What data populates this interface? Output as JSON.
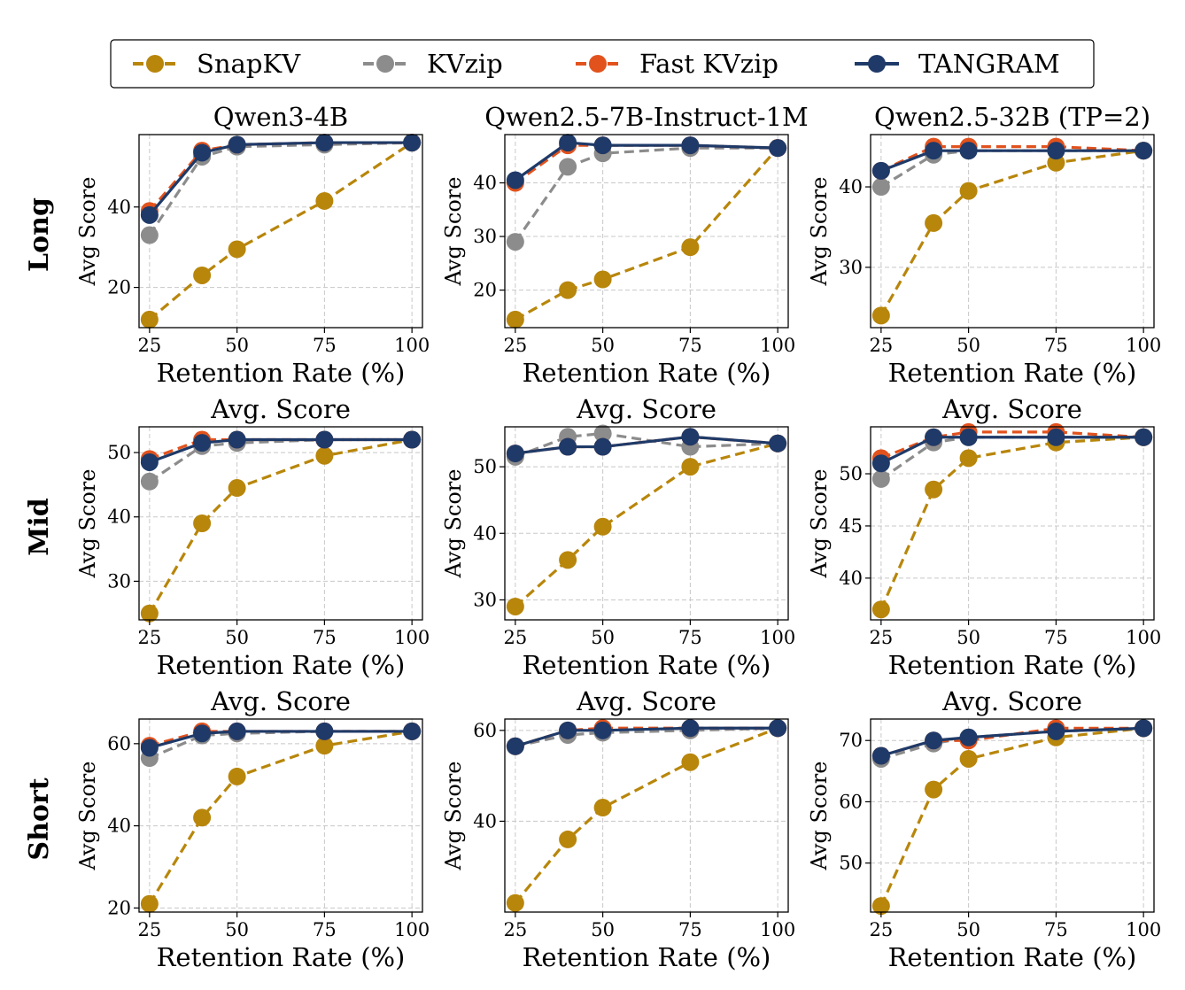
{
  "legend": {
    "items": [
      {
        "label": "SnapKV",
        "color": "#b8860b",
        "dash": true
      },
      {
        "label": "KVzip",
        "color": "#8c8c8c",
        "dash": true
      },
      {
        "label": "Fast KVzip",
        "color": "#e2521d",
        "dash": true
      },
      {
        "label": "TANGRAM",
        "color": "#1f3a68",
        "dash": false
      }
    ]
  },
  "row_labels": [
    "Long",
    "Mid",
    "Short"
  ],
  "column_titles": [
    "Qwen3-4B",
    "Qwen2.5-7B-Instruct-1M",
    "Qwen2.5-32B (TP=2)"
  ],
  "chart_data": [
    {
      "type": "line",
      "title": "Qwen3-4B",
      "row": "Long",
      "xlabel": "Retention Rate (%)",
      "ylabel": "Avg Score",
      "x": [
        25,
        40,
        50,
        75,
        100
      ],
      "xticks": [
        25,
        50,
        75,
        100
      ],
      "xlim": [
        22,
        103
      ],
      "yticks": [
        20,
        40
      ],
      "ylim": [
        10,
        58
      ],
      "grid": true,
      "series": [
        {
          "name": "SnapKV",
          "values": [
            12,
            23,
            29.5,
            41.5,
            56
          ]
        },
        {
          "name": "KVzip",
          "values": [
            33,
            52.5,
            55,
            55.5,
            56
          ]
        },
        {
          "name": "Fast KVzip",
          "values": [
            39,
            54,
            55.5,
            56,
            56
          ]
        },
        {
          "name": "TANGRAM",
          "values": [
            38,
            53.5,
            55.5,
            56,
            56
          ]
        }
      ]
    },
    {
      "type": "line",
      "title": "Qwen2.5-7B-Instruct-1M",
      "row": "Long",
      "xlabel": "Retention Rate (%)",
      "ylabel": "Avg Score",
      "x": [
        25,
        40,
        50,
        75,
        100
      ],
      "xticks": [
        25,
        50,
        75,
        100
      ],
      "xlim": [
        22,
        103
      ],
      "yticks": [
        20,
        30,
        40
      ],
      "ylim": [
        13,
        49
      ],
      "grid": true,
      "series": [
        {
          "name": "SnapKV",
          "values": [
            14.5,
            20,
            22,
            28,
            46.5
          ]
        },
        {
          "name": "KVzip",
          "values": [
            29,
            43,
            45.5,
            46.5,
            46.5
          ]
        },
        {
          "name": "Fast KVzip",
          "values": [
            40,
            47,
            47,
            47,
            46.5
          ]
        },
        {
          "name": "TANGRAM",
          "values": [
            40.5,
            47.5,
            47,
            47,
            46.5
          ]
        }
      ]
    },
    {
      "type": "line",
      "title": "Qwen2.5-32B (TP=2)",
      "row": "Long",
      "xlabel": "Retention Rate (%)",
      "ylabel": "Avg Score",
      "x": [
        25,
        40,
        50,
        75,
        100
      ],
      "xticks": [
        25,
        50,
        75,
        100
      ],
      "xlim": [
        22,
        103
      ],
      "yticks": [
        30,
        40
      ],
      "ylim": [
        22.5,
        46.5
      ],
      "grid": true,
      "series": [
        {
          "name": "SnapKV",
          "values": [
            24,
            35.5,
            39.5,
            43,
            44.5
          ]
        },
        {
          "name": "KVzip",
          "values": [
            40,
            44,
            44.5,
            44.5,
            44.5
          ]
        },
        {
          "name": "Fast KVzip",
          "values": [
            42,
            45,
            45,
            45,
            44.5
          ]
        },
        {
          "name": "TANGRAM",
          "values": [
            42,
            44.5,
            44.5,
            44.5,
            44.5
          ]
        }
      ]
    },
    {
      "type": "line",
      "title": "Avg. Score",
      "row": "Mid",
      "xlabel": "Retention Rate (%)",
      "ylabel": "Avg Score",
      "x": [
        25,
        40,
        50,
        75,
        100
      ],
      "xticks": [
        25,
        50,
        75,
        100
      ],
      "xlim": [
        22,
        103
      ],
      "yticks": [
        30,
        40,
        50
      ],
      "ylim": [
        24,
        54
      ],
      "grid": true,
      "series": [
        {
          "name": "SnapKV",
          "values": [
            25,
            39,
            44.5,
            49.5,
            52
          ]
        },
        {
          "name": "KVzip",
          "values": [
            45.5,
            51,
            51.5,
            52,
            52
          ]
        },
        {
          "name": "Fast KVzip",
          "values": [
            49,
            52,
            52,
            52,
            52
          ]
        },
        {
          "name": "TANGRAM",
          "values": [
            48.5,
            51.5,
            52,
            52,
            52
          ]
        }
      ]
    },
    {
      "type": "line",
      "title": "Avg. Score",
      "row": "Mid",
      "xlabel": "Retention Rate (%)",
      "ylabel": "Avg Score",
      "x": [
        25,
        40,
        50,
        75,
        100
      ],
      "xticks": [
        25,
        50,
        75,
        100
      ],
      "xlim": [
        22,
        103
      ],
      "yticks": [
        30,
        40,
        50
      ],
      "ylim": [
        27,
        56
      ],
      "grid": true,
      "series": [
        {
          "name": "SnapKV",
          "values": [
            29,
            36,
            41,
            50,
            53.5
          ]
        },
        {
          "name": "KVzip",
          "values": [
            51.5,
            54.5,
            55,
            53,
            53.5
          ]
        },
        {
          "name": "Fast KVzip",
          "values": [
            52,
            53,
            53,
            54.5,
            53.5
          ]
        },
        {
          "name": "TANGRAM",
          "values": [
            52,
            53,
            53,
            54.5,
            53.5
          ]
        }
      ]
    },
    {
      "type": "line",
      "title": "Avg. Score",
      "row": "Mid",
      "xlabel": "Retention Rate (%)",
      "ylabel": "Avg Score",
      "x": [
        25,
        40,
        50,
        75,
        100
      ],
      "xticks": [
        25,
        50,
        75,
        100
      ],
      "xlim": [
        22,
        103
      ],
      "yticks": [
        40,
        45,
        50
      ],
      "ylim": [
        36,
        54.5
      ],
      "grid": true,
      "series": [
        {
          "name": "SnapKV",
          "values": [
            37,
            48.5,
            51.5,
            53,
            53.5
          ]
        },
        {
          "name": "KVzip",
          "values": [
            49.5,
            53,
            53.5,
            53.5,
            53.5
          ]
        },
        {
          "name": "Fast KVzip",
          "values": [
            51.5,
            53.5,
            54,
            54,
            53.5
          ]
        },
        {
          "name": "TANGRAM",
          "values": [
            51,
            53.5,
            53.5,
            53.5,
            53.5
          ]
        }
      ]
    },
    {
      "type": "line",
      "title": "Avg. Score",
      "row": "Short",
      "xlabel": "Retention Rate (%)",
      "ylabel": "Avg Score",
      "x": [
        25,
        40,
        50,
        75,
        100
      ],
      "xticks": [
        25,
        50,
        75,
        100
      ],
      "xlim": [
        22,
        103
      ],
      "yticks": [
        20,
        40,
        60
      ],
      "ylim": [
        19,
        66
      ],
      "grid": true,
      "series": [
        {
          "name": "SnapKV",
          "values": [
            21,
            42,
            52,
            59.5,
            63
          ]
        },
        {
          "name": "KVzip",
          "values": [
            56.5,
            62,
            62.5,
            63,
            63
          ]
        },
        {
          "name": "Fast KVzip",
          "values": [
            59.5,
            63,
            63,
            63,
            63
          ]
        },
        {
          "name": "TANGRAM",
          "values": [
            59,
            62.5,
            63,
            63,
            63
          ]
        }
      ]
    },
    {
      "type": "line",
      "title": "Avg. Score",
      "row": "Short",
      "xlabel": "Retention Rate (%)",
      "ylabel": "Avg Score",
      "x": [
        25,
        40,
        50,
        75,
        100
      ],
      "xticks": [
        25,
        50,
        75,
        100
      ],
      "xlim": [
        22,
        103
      ],
      "yticks": [
        40,
        60
      ],
      "ylim": [
        20,
        62.5
      ],
      "grid": true,
      "series": [
        {
          "name": "SnapKV",
          "values": [
            22,
            36,
            43,
            53,
            60.5
          ]
        },
        {
          "name": "KVzip",
          "values": [
            56.5,
            59,
            59.5,
            60,
            60.5
          ]
        },
        {
          "name": "Fast KVzip",
          "values": [
            56.5,
            60,
            60.5,
            60.5,
            60.5
          ]
        },
        {
          "name": "TANGRAM",
          "values": [
            56.5,
            60,
            60,
            60.5,
            60.5
          ]
        }
      ]
    },
    {
      "type": "line",
      "title": "Avg. Score",
      "row": "Short",
      "xlabel": "Retention Rate (%)",
      "ylabel": "Avg Score",
      "x": [
        25,
        40,
        50,
        75,
        100
      ],
      "xticks": [
        25,
        50,
        75,
        100
      ],
      "xlim": [
        22,
        103
      ],
      "yticks": [
        50,
        60,
        70
      ],
      "ylim": [
        42,
        73.5
      ],
      "grid": true,
      "series": [
        {
          "name": "SnapKV",
          "values": [
            43,
            62,
            67,
            70.5,
            72
          ]
        },
        {
          "name": "KVzip",
          "values": [
            67,
            69.5,
            70.5,
            71.5,
            72
          ]
        },
        {
          "name": "Fast KVzip",
          "values": [
            67.5,
            70,
            70,
            72,
            72
          ]
        },
        {
          "name": "TANGRAM",
          "values": [
            67.5,
            70,
            70.5,
            71.5,
            72
          ]
        }
      ]
    }
  ]
}
